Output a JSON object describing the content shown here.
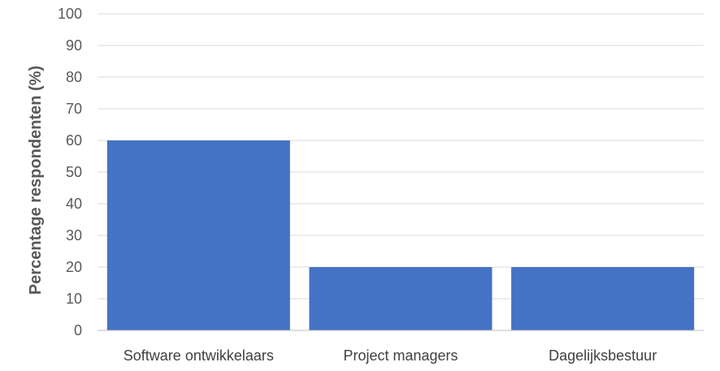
{
  "chart_data": {
    "type": "bar",
    "title": "",
    "xlabel": "",
    "ylabel": "Percentage respondenten (%)",
    "categories": [
      "Software ontwikkelaars",
      "Project managers",
      "Dagelijksbestuur"
    ],
    "values": [
      60,
      20,
      20
    ],
    "ylim": [
      0,
      100
    ],
    "yticks": [
      0,
      10,
      20,
      30,
      40,
      50,
      60,
      70,
      80,
      90,
      100
    ],
    "grid": true,
    "legend": "none",
    "bar_color": "#4472c4"
  }
}
